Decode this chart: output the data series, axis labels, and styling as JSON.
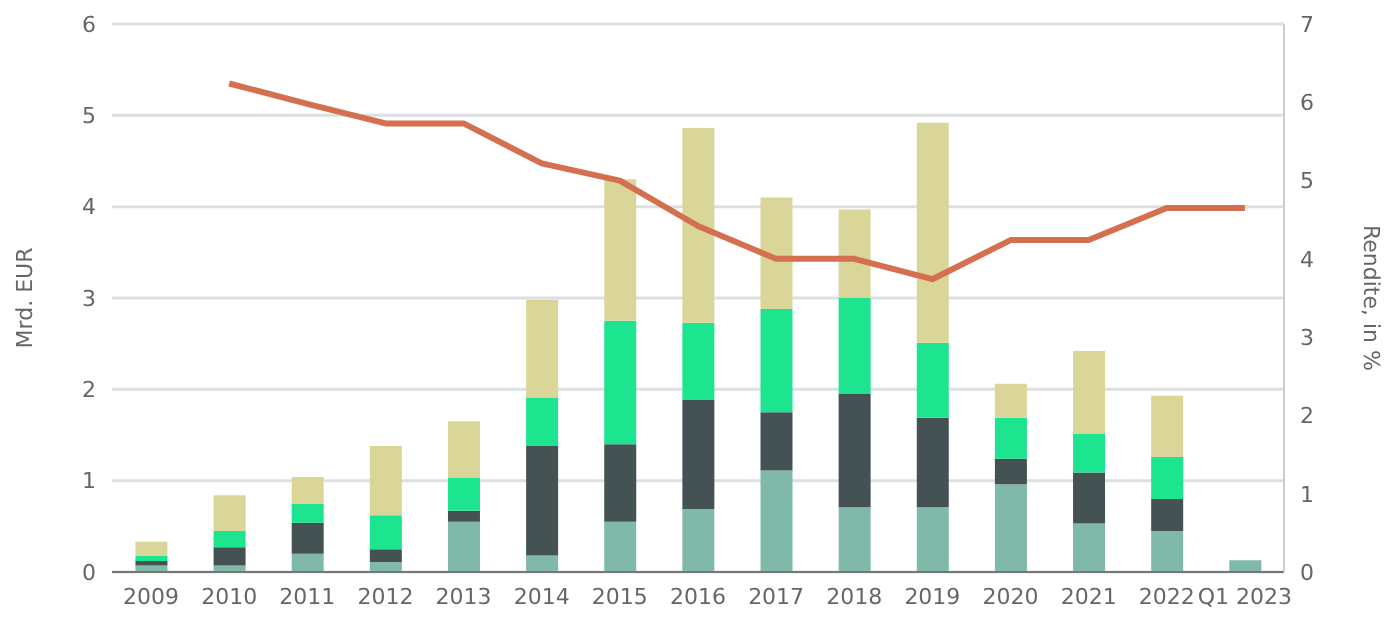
{
  "chart_data": {
    "type": "bar",
    "ylabel": "Mrd. EUR",
    "y2label": "Rendite, in %",
    "categories": [
      "2009",
      "2010",
      "2011",
      "2012",
      "2013",
      "2014",
      "2015",
      "2016",
      "2017",
      "2018",
      "2019",
      "2020",
      "2021",
      "2022",
      "Q1 2023"
    ],
    "stacked": true,
    "series": [
      {
        "color": "#80b9aa",
        "values": [
          0.07,
          0.07,
          0.2,
          0.11,
          0.55,
          0.18,
          0.55,
          0.69,
          1.11,
          0.71,
          0.71,
          0.96,
          0.53,
          0.45,
          0.13
        ]
      },
      {
        "color": "#455254",
        "values": [
          0.05,
          0.2,
          0.34,
          0.14,
          0.12,
          1.2,
          0.85,
          1.2,
          0.64,
          1.24,
          0.98,
          0.28,
          0.56,
          0.35,
          null
        ]
      },
      {
        "color": "#1de58f",
        "values": [
          0.06,
          0.18,
          0.21,
          0.37,
          0.36,
          0.53,
          1.35,
          0.84,
          1.13,
          1.05,
          0.82,
          0.45,
          0.42,
          0.46,
          null
        ]
      },
      {
        "color": "#dad699",
        "values": [
          0.15,
          0.39,
          0.29,
          0.76,
          0.62,
          1.07,
          1.55,
          2.13,
          1.22,
          0.97,
          2.41,
          0.37,
          0.91,
          0.67,
          null
        ]
      },
      {
        "type": "line",
        "axis": "y2",
        "color": "#d4704f",
        "values": [
          null,
          6.24,
          5.98,
          5.73,
          5.73,
          5.22,
          5.0,
          4.42,
          4.0,
          4.0,
          3.74,
          4.24,
          4.24,
          4.65,
          4.65
        ]
      }
    ],
    "ylim": [
      0,
      6
    ],
    "yticks": [
      0,
      1,
      2,
      3,
      4,
      5,
      6
    ],
    "y2lim": [
      0,
      7
    ],
    "y2ticks": [
      0,
      1,
      2,
      3,
      4,
      5,
      6,
      7
    ],
    "grid": "y",
    "legend": false,
    "marker": "none",
    "line_style": "solid"
  }
}
